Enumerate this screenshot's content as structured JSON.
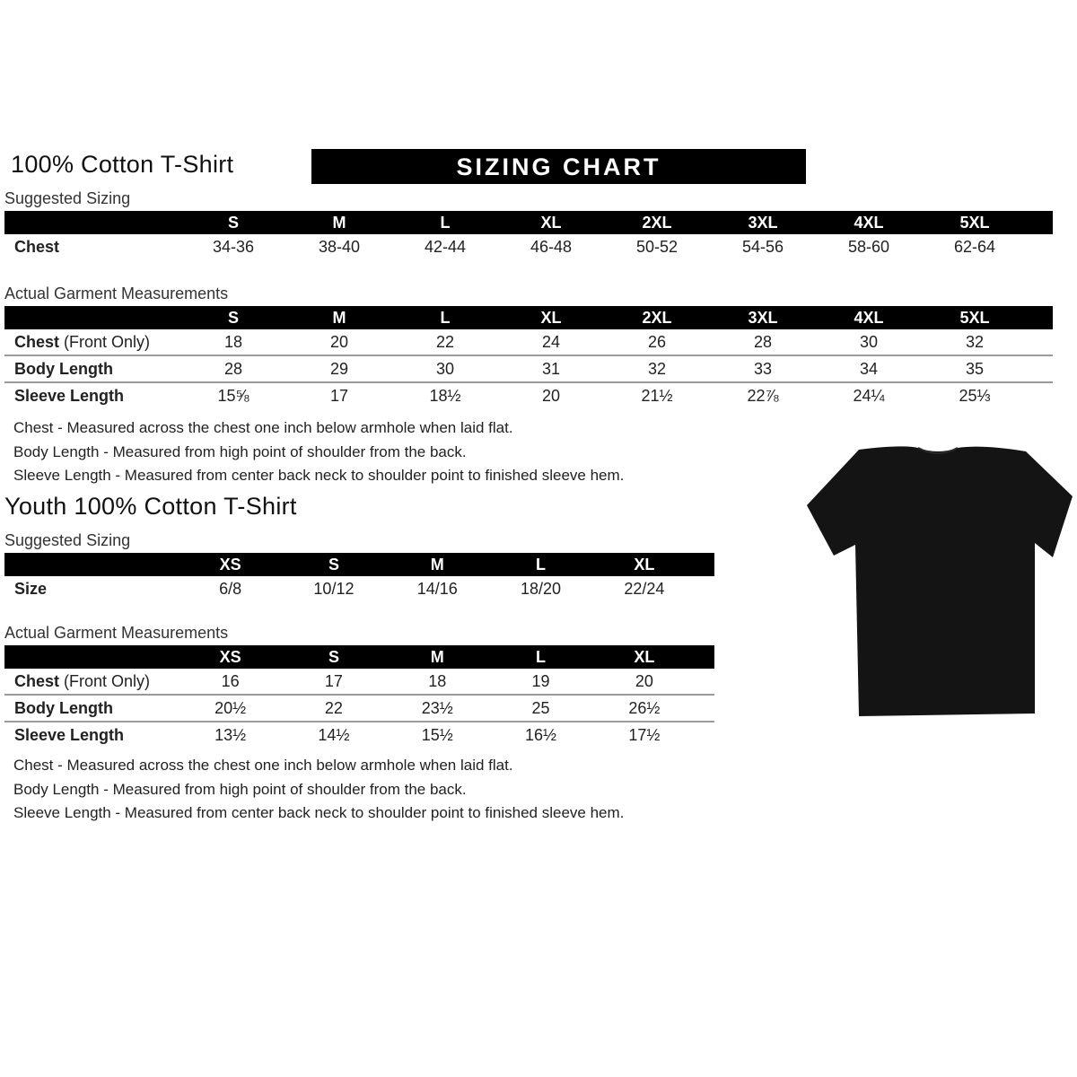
{
  "banner": "SIZING CHART",
  "adult": {
    "title": "100% Cotton T-Shirt",
    "suggested_label": "Suggested Sizing",
    "sizes": [
      "S",
      "M",
      "L",
      "XL",
      "2XL",
      "3XL",
      "4XL",
      "5XL"
    ],
    "suggested_rows": [
      {
        "label": "Chest",
        "values": [
          "34-36",
          "38-40",
          "42-44",
          "46-48",
          "50-52",
          "54-56",
          "58-60",
          "62-64"
        ]
      }
    ],
    "actual_label": "Actual Garment Measurements",
    "actual_rows": [
      {
        "label": "Chest",
        "label_suffix": " (Front Only)",
        "values": [
          "18",
          "20",
          "22",
          "24",
          "26",
          "28",
          "30",
          "32"
        ]
      },
      {
        "label": "Body Length",
        "values": [
          "28",
          "29",
          "30",
          "31",
          "32",
          "33",
          "34",
          "35"
        ]
      },
      {
        "label": "Sleeve Length",
        "values": [
          "15⅝",
          "17",
          "18½",
          "20",
          "21½",
          "22⅞",
          "24¼",
          "25⅓"
        ]
      }
    ],
    "notes": [
      "Chest - Measured across the chest one inch below armhole when laid flat.",
      "Body Length - Measured from high point of shoulder from the back.",
      "Sleeve Length - Measured from center back neck to shoulder point to finished sleeve hem."
    ]
  },
  "youth": {
    "title": "Youth 100% Cotton T-Shirt",
    "suggested_label": "Suggested Sizing",
    "sizes": [
      "XS",
      "S",
      "M",
      "L",
      "XL"
    ],
    "suggested_rows": [
      {
        "label": "Size",
        "values": [
          "6/8",
          "10/12",
          "14/16",
          "18/20",
          "22/24"
        ]
      }
    ],
    "actual_label": "Actual Garment Measurements",
    "actual_rows": [
      {
        "label": "Chest",
        "label_suffix": " (Front Only)",
        "values": [
          "16",
          "17",
          "18",
          "19",
          "20"
        ]
      },
      {
        "label": "Body Length",
        "values": [
          "20½",
          "22",
          "23½",
          "25",
          "26½"
        ]
      },
      {
        "label": "Sleeve Length",
        "values": [
          "13½",
          "14½",
          "15½",
          "16½",
          "17½"
        ]
      }
    ],
    "notes": [
      "Chest - Measured across the chest one inch below armhole when laid flat.",
      "Body Length - Measured from high point of shoulder from the back.",
      "Sleeve Length - Measured from center back neck to shoulder point to finished sleeve hem."
    ]
  },
  "tshirt_color": "#141414"
}
